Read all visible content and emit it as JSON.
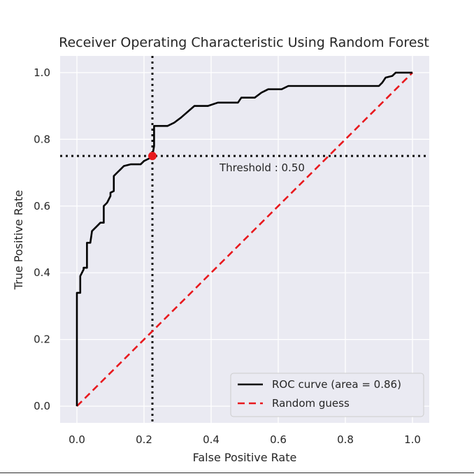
{
  "chart_data": {
    "type": "line",
    "title": "Receiver Operating Characteristic Using Random Forest",
    "xlabel": "False Positive Rate",
    "ylabel": "True Positive Rate",
    "xlim": [
      -0.05,
      1.05
    ],
    "ylim": [
      -0.05,
      1.05
    ],
    "xticks": [
      "0.0",
      "0.2",
      "0.4",
      "0.6",
      "0.8",
      "1.0"
    ],
    "yticks": [
      "0.0",
      "0.2",
      "0.4",
      "0.6",
      "0.8",
      "1.0"
    ],
    "grid": true,
    "legend_position": "lower-right",
    "series": [
      {
        "name": "ROC curve (area = 0.86)",
        "color": "#000000",
        "style": "solid",
        "x": [
          0,
          0,
          0.01,
          0.01,
          0.02,
          0.02,
          0.03,
          0.03,
          0.04,
          0.045,
          0.06,
          0.07,
          0.08,
          0.08,
          0.09,
          0.1,
          0.1,
          0.11,
          0.11,
          0.12,
          0.13,
          0.14,
          0.16,
          0.19,
          0.2,
          0.21,
          0.22,
          0.225,
          0.23,
          0.23,
          0.27,
          0.29,
          0.31,
          0.35,
          0.39,
          0.42,
          0.48,
          0.49,
          0.53,
          0.55,
          0.57,
          0.61,
          0.63,
          0.76,
          0.9,
          0.91,
          0.92,
          0.94,
          0.95,
          1.0
        ],
        "y": [
          0,
          0.34,
          0.34,
          0.39,
          0.41,
          0.415,
          0.415,
          0.49,
          0.49,
          0.525,
          0.54,
          0.55,
          0.55,
          0.6,
          0.61,
          0.63,
          0.64,
          0.645,
          0.69,
          0.7,
          0.71,
          0.72,
          0.725,
          0.725,
          0.735,
          0.74,
          0.745,
          0.75,
          0.78,
          0.84,
          0.84,
          0.85,
          0.865,
          0.9,
          0.9,
          0.91,
          0.91,
          0.925,
          0.925,
          0.94,
          0.95,
          0.95,
          0.96,
          0.96,
          0.96,
          0.97,
          0.985,
          0.99,
          1.0,
          1.0
        ]
      },
      {
        "name": "Random guess",
        "color": "#e8191e",
        "style": "dashed",
        "x": [
          0,
          1
        ],
        "y": [
          0,
          1
        ]
      }
    ],
    "threshold": {
      "label": "Threshold : 0.50",
      "x": 0.225,
      "y": 0.75,
      "color": "#e8191e"
    }
  }
}
